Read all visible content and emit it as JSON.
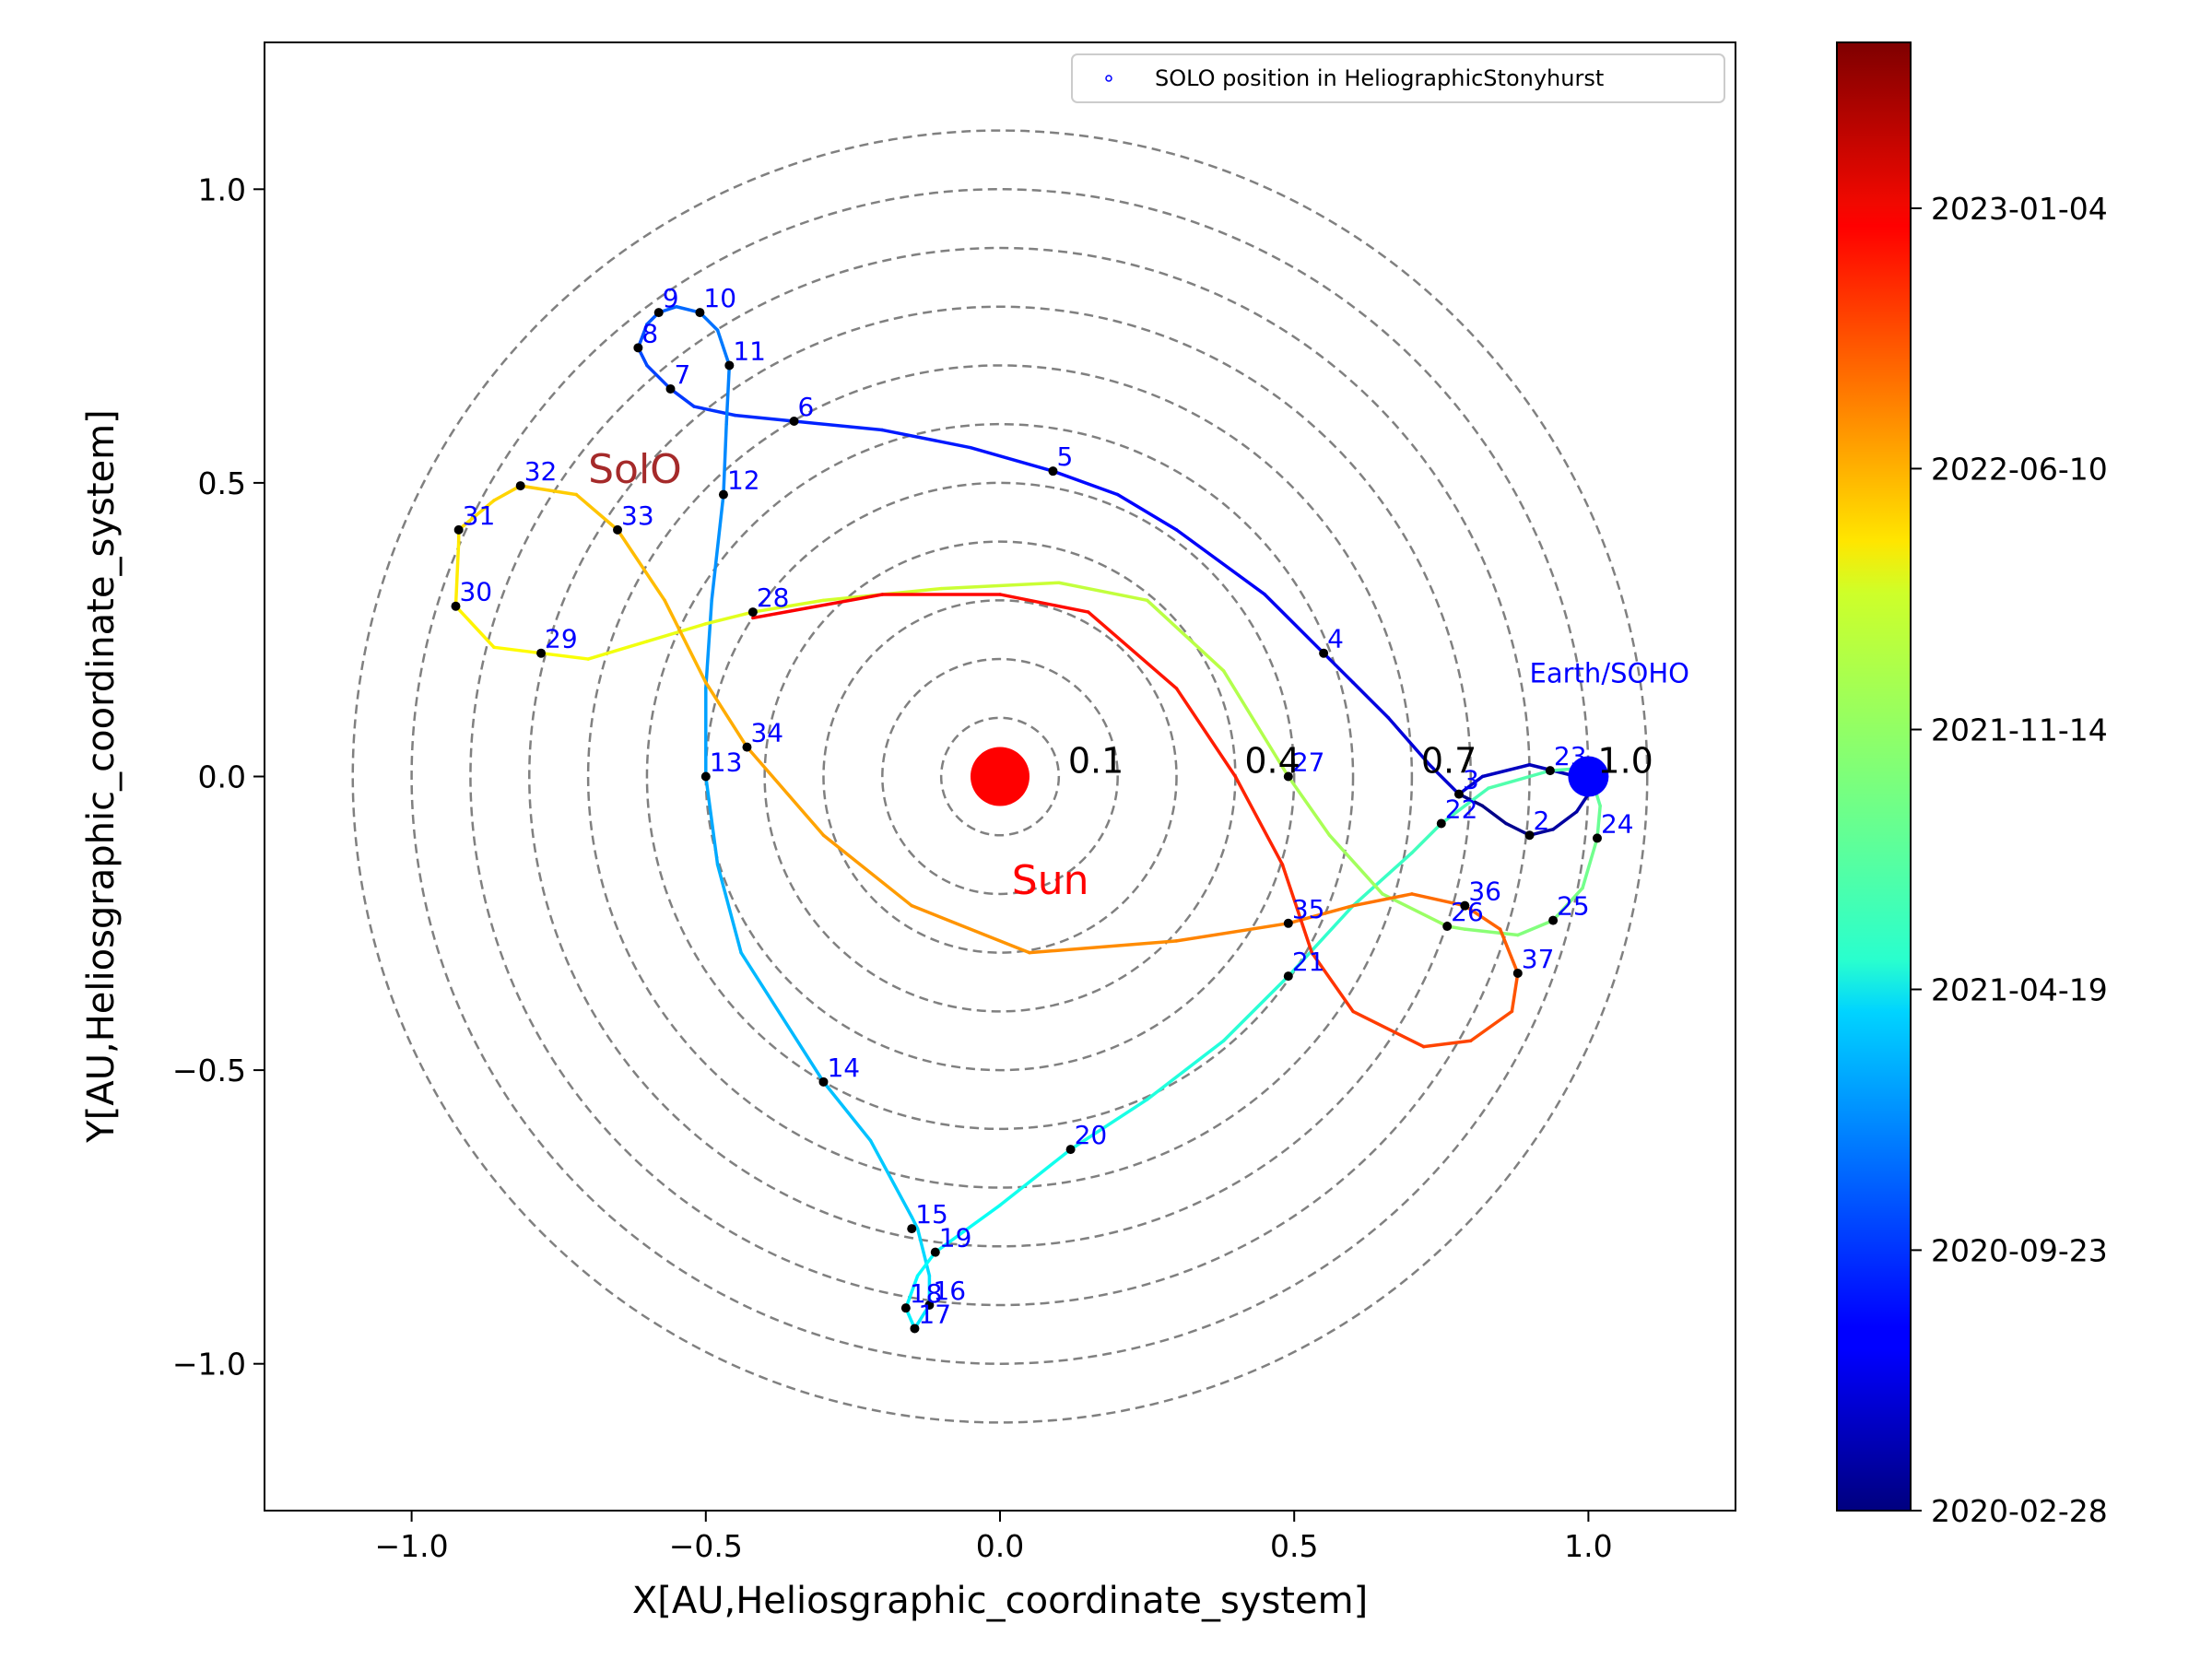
{
  "chart_data": {
    "type": "line",
    "title": "",
    "xlabel": "X[AU,Heliosgraphic_coordinate_system]",
    "ylabel": "Y[AU,Heliosgraphic_coordinate_system]",
    "xlim": [
      -1.25,
      1.25
    ],
    "ylim": [
      -1.25,
      1.25
    ],
    "xticks": [
      -1.0,
      -0.5,
      0.0,
      0.5,
      1.0
    ],
    "yticks": [
      -1.0,
      -0.5,
      0.0,
      0.5,
      1.0
    ],
    "xtick_labels": [
      "−1.0",
      "−0.5",
      "0.0",
      "0.5",
      "1.0"
    ],
    "ytick_labels": [
      "−1.0",
      "−0.5",
      "0.0",
      "0.5",
      "1.0"
    ],
    "grid": false,
    "legend": {
      "position": "top-right",
      "entries": [
        {
          "label": "SOLO position in HeliographicStonyhurst",
          "color": "#0000ff",
          "marker": "point"
        }
      ]
    },
    "reference_circles": {
      "radii": [
        0.1,
        0.2,
        0.3,
        0.4,
        0.5,
        0.6,
        0.7,
        0.8,
        0.9,
        1.0,
        1.1
      ],
      "style": "dashed",
      "color": "#808080",
      "labels": [
        {
          "r": 0.1,
          "text": "0.1"
        },
        {
          "r": 0.4,
          "text": "0.4"
        },
        {
          "r": 0.7,
          "text": "0.7"
        },
        {
          "r": 1.0,
          "text": "1.0"
        }
      ]
    },
    "sun": {
      "x": 0.0,
      "y": 0.0,
      "color": "#ff0000",
      "label": "Sun",
      "label_x": 0.02,
      "label_y": -0.2
    },
    "earth": {
      "x": 1.0,
      "y": 0.0,
      "color": "#0000ff",
      "label": "Earth/SOHO",
      "label_x": 0.9,
      "label_y": 0.16
    },
    "orbit_label": {
      "text": "SolO",
      "x": -0.7,
      "y": 0.5,
      "color": "#a52a2a"
    },
    "colorbar": {
      "colormap": "jet",
      "ticks": [
        {
          "label": "2020-02-28",
          "frac": 0.0
        },
        {
          "label": "2020-09-23",
          "frac": 0.1774
        },
        {
          "label": "2021-04-19",
          "frac": 0.355
        },
        {
          "label": "2021-11-14",
          "frac": 0.532
        },
        {
          "label": "2022-06-10",
          "frac": 0.7097
        },
        {
          "label": "2023-01-04",
          "frac": 0.887
        }
      ]
    },
    "path": [
      [
        0.78,
        -0.03
      ],
      [
        0.82,
        -0.05
      ],
      [
        0.86,
        -0.08
      ],
      [
        0.9,
        -0.1
      ],
      [
        0.94,
        -0.09
      ],
      [
        0.98,
        -0.06
      ],
      [
        1.0,
        -0.03
      ],
      [
        0.98,
        0.0
      ],
      [
        0.9,
        0.02
      ],
      [
        0.82,
        0.0
      ],
      [
        0.78,
        -0.03
      ],
      [
        0.73,
        0.02
      ],
      [
        0.66,
        0.1
      ],
      [
        0.6,
        0.16
      ],
      [
        0.55,
        0.21
      ],
      [
        0.45,
        0.31
      ],
      [
        0.3,
        0.42
      ],
      [
        0.2,
        0.48
      ],
      [
        0.09,
        0.52
      ],
      [
        -0.05,
        0.56
      ],
      [
        -0.2,
        0.59
      ],
      [
        -0.35,
        0.605
      ],
      [
        -0.45,
        0.615
      ],
      [
        -0.52,
        0.63
      ],
      [
        -0.56,
        0.66
      ],
      [
        -0.6,
        0.7
      ],
      [
        -0.615,
        0.73
      ],
      [
        -0.6,
        0.77
      ],
      [
        -0.58,
        0.79
      ],
      [
        -0.55,
        0.8
      ],
      [
        -0.51,
        0.79
      ],
      [
        -0.48,
        0.76
      ],
      [
        -0.46,
        0.7
      ],
      [
        -0.465,
        0.6
      ],
      [
        -0.47,
        0.48
      ],
      [
        -0.49,
        0.3
      ],
      [
        -0.5,
        0.15
      ],
      [
        -0.5,
        0.0
      ],
      [
        -0.48,
        -0.15
      ],
      [
        -0.44,
        -0.3
      ],
      [
        -0.3,
        -0.52
      ],
      [
        -0.22,
        -0.62
      ],
      [
        -0.15,
        -0.75
      ],
      [
        -0.14,
        -0.77
      ],
      [
        -0.12,
        -0.85
      ],
      [
        -0.12,
        -0.9
      ],
      [
        -0.145,
        -0.94
      ],
      [
        -0.16,
        -0.905
      ],
      [
        -0.14,
        -0.85
      ],
      [
        -0.11,
        -0.81
      ],
      [
        0.0,
        -0.73
      ],
      [
        0.12,
        -0.635
      ],
      [
        0.25,
        -0.55
      ],
      [
        0.38,
        -0.45
      ],
      [
        0.49,
        -0.34
      ],
      [
        0.6,
        -0.22
      ],
      [
        0.7,
        -0.13
      ],
      [
        0.75,
        -0.08
      ],
      [
        0.83,
        -0.02
      ],
      [
        0.935,
        0.01
      ],
      [
        1.0,
        0.015
      ],
      [
        1.02,
        -0.05
      ],
      [
        1.015,
        -0.105
      ],
      [
        0.99,
        -0.19
      ],
      [
        0.94,
        -0.245
      ],
      [
        0.88,
        -0.27
      ],
      [
        0.79,
        -0.26
      ],
      [
        0.76,
        -0.255
      ],
      [
        0.65,
        -0.2
      ],
      [
        0.56,
        -0.1
      ],
      [
        0.49,
        0.0
      ],
      [
        0.38,
        0.18
      ],
      [
        0.25,
        0.3
      ],
      [
        0.1,
        0.33
      ],
      [
        -0.1,
        0.32
      ],
      [
        -0.3,
        0.3
      ],
      [
        -0.42,
        0.28
      ],
      [
        -0.5,
        0.26
      ],
      [
        -0.6,
        0.23
      ],
      [
        -0.7,
        0.2
      ],
      [
        -0.78,
        0.21
      ],
      [
        -0.86,
        0.22
      ],
      [
        -0.925,
        0.29
      ],
      [
        -0.92,
        0.4
      ],
      [
        -0.92,
        0.42
      ],
      [
        -0.86,
        0.47
      ],
      [
        -0.815,
        0.495
      ],
      [
        -0.72,
        0.48
      ],
      [
        -0.65,
        0.42
      ],
      [
        -0.57,
        0.3
      ],
      [
        -0.5,
        0.16
      ],
      [
        -0.43,
        0.05
      ],
      [
        -0.3,
        -0.1
      ],
      [
        -0.15,
        -0.22
      ],
      [
        0.05,
        -0.3
      ],
      [
        0.3,
        -0.28
      ],
      [
        0.49,
        -0.25
      ],
      [
        0.6,
        -0.22
      ],
      [
        0.7,
        -0.2
      ],
      [
        0.79,
        -0.22
      ],
      [
        0.85,
        -0.26
      ],
      [
        0.88,
        -0.335
      ],
      [
        0.87,
        -0.4
      ],
      [
        0.8,
        -0.45
      ],
      [
        0.72,
        -0.46
      ],
      [
        0.6,
        -0.4
      ],
      [
        0.53,
        -0.3
      ],
      [
        0.48,
        -0.15
      ],
      [
        0.4,
        0.0
      ],
      [
        0.3,
        0.15
      ],
      [
        0.15,
        0.28
      ],
      [
        0.0,
        0.31
      ],
      [
        -0.2,
        0.31
      ],
      [
        -0.42,
        0.27
      ]
    ],
    "numbered_points": [
      {
        "n": "2",
        "x": 0.9,
        "y": -0.1
      },
      {
        "n": "3",
        "x": 0.78,
        "y": -0.03
      },
      {
        "n": "4",
        "x": 0.55,
        "y": 0.21
      },
      {
        "n": "5",
        "x": 0.09,
        "y": 0.52
      },
      {
        "n": "6",
        "x": -0.35,
        "y": 0.605
      },
      {
        "n": "7",
        "x": -0.56,
        "y": 0.66
      },
      {
        "n": "8",
        "x": -0.615,
        "y": 0.73
      },
      {
        "n": "9",
        "x": -0.58,
        "y": 0.79
      },
      {
        "n": "10",
        "x": -0.51,
        "y": 0.79
      },
      {
        "n": "11",
        "x": -0.46,
        "y": 0.7
      },
      {
        "n": "12",
        "x": -0.47,
        "y": 0.48
      },
      {
        "n": "13",
        "x": -0.5,
        "y": 0.0
      },
      {
        "n": "14",
        "x": -0.3,
        "y": -0.52
      },
      {
        "n": "15",
        "x": -0.15,
        "y": -0.77
      },
      {
        "n": "16",
        "x": -0.12,
        "y": -0.9
      },
      {
        "n": "17",
        "x": -0.145,
        "y": -0.94
      },
      {
        "n": "18",
        "x": -0.16,
        "y": -0.905
      },
      {
        "n": "19",
        "x": -0.11,
        "y": -0.81
      },
      {
        "n": "20",
        "x": 0.12,
        "y": -0.635
      },
      {
        "n": "21",
        "x": 0.49,
        "y": -0.34
      },
      {
        "n": "22",
        "x": 0.75,
        "y": -0.08
      },
      {
        "n": "23",
        "x": 0.935,
        "y": 0.01
      },
      {
        "n": "24",
        "x": 1.015,
        "y": -0.105
      },
      {
        "n": "25",
        "x": 0.94,
        "y": -0.245
      },
      {
        "n": "26",
        "x": 0.76,
        "y": -0.255
      },
      {
        "n": "27",
        "x": 0.49,
        "y": 0.0
      },
      {
        "n": "28",
        "x": -0.42,
        "y": 0.28
      },
      {
        "n": "29",
        "x": -0.78,
        "y": 0.21
      },
      {
        "n": "30",
        "x": -0.925,
        "y": 0.29
      },
      {
        "n": "31",
        "x": -0.92,
        "y": 0.42
      },
      {
        "n": "32",
        "x": -0.815,
        "y": 0.495
      },
      {
        "n": "33",
        "x": -0.65,
        "y": 0.42
      },
      {
        "n": "34",
        "x": -0.43,
        "y": 0.05
      },
      {
        "n": "35",
        "x": 0.49,
        "y": -0.25
      },
      {
        "n": "36",
        "x": 0.79,
        "y": -0.22
      },
      {
        "n": "37",
        "x": 0.88,
        "y": -0.335
      }
    ]
  }
}
